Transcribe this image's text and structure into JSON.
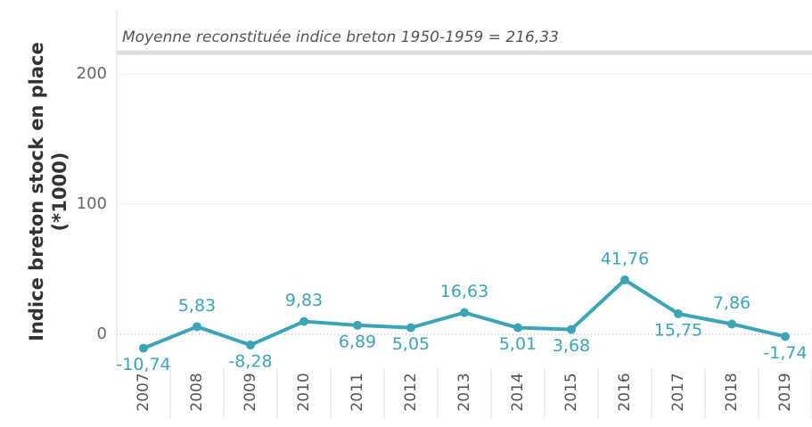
{
  "chart_data": {
    "type": "line",
    "y_label": [
      "Indice breton stock en place",
      "(*1000)"
    ],
    "categories": [
      "2007",
      "2008",
      "2009",
      "2010",
      "2011",
      "2012",
      "2013",
      "2014",
      "2015",
      "2016",
      "2017",
      "2018",
      "2019"
    ],
    "series": [
      {
        "color": "#3ba5b7",
        "values": [
          -10.74,
          5.83,
          -8.28,
          9.83,
          6.89,
          5.05,
          16.63,
          5.01,
          3.68,
          41.76,
          15.75,
          7.86,
          -1.74
        ],
        "value_labels": [
          "-10,74",
          "5,83",
          "-8,28",
          "9,83",
          "6,89",
          "5,05",
          "16,63",
          "5,01",
          "3,68",
          "41,76",
          "15,75",
          "7,86",
          "-1,74"
        ]
      }
    ],
    "reference_line": {
      "value": 216.33,
      "label": "Moyenne reconstituée indice breton 1950-1959 = 216,33"
    },
    "ylim": [
      -24,
      250
    ],
    "yticks": [
      0,
      100,
      200
    ],
    "grid": true
  }
}
